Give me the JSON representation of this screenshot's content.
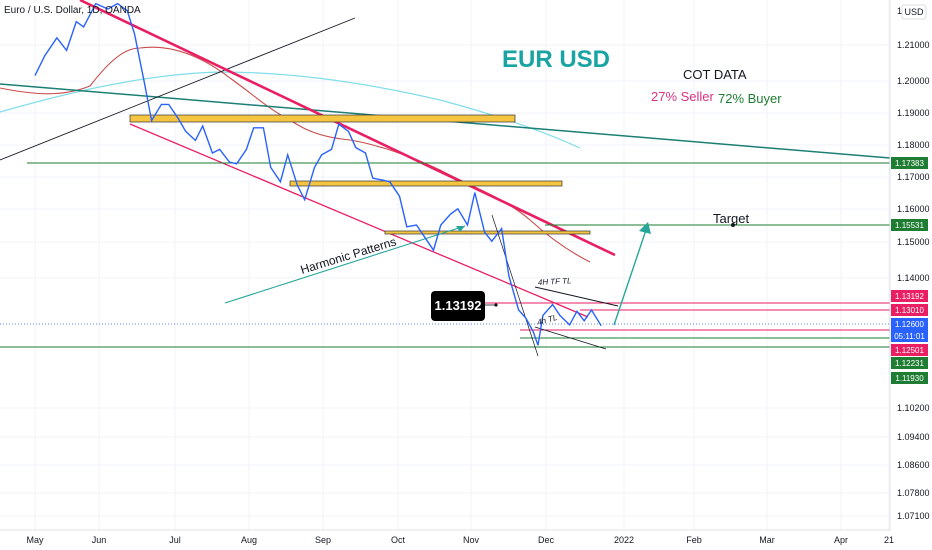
{
  "symbol_title": "Euro / U.S. Dollar, 1D, OANDA",
  "currency_label": "USD",
  "chart_data": {
    "type": "line",
    "title": "EUR USD",
    "x_labels": [
      "May",
      "Jun",
      "Jul",
      "Aug",
      "Sep",
      "Oct",
      "Nov",
      "Dec",
      "2022",
      "Feb",
      "Mar",
      "Apr",
      "21"
    ],
    "y_ticks": [
      "1.21000",
      "1.20000",
      "1.19000",
      "1.18000",
      "1.17000",
      "1.16000",
      "1.15000",
      "1.14000",
      "1.10200",
      "1.09400",
      "1.08600",
      "1.07800",
      "1.07100"
    ],
    "y_top_tick": "1.2",
    "ylim": [
      1.07,
      1.225
    ],
    "series": [
      {
        "values": [
          [
            "2021-05-01",
            1.2015
          ],
          [
            "2021-05-05",
            1.207
          ],
          [
            "2021-05-10",
            1.212
          ],
          [
            "2021-05-14",
            1.2085
          ],
          [
            "2021-05-18",
            1.2165
          ],
          [
            "2021-05-21",
            1.215
          ],
          [
            "2021-05-26",
            1.2215
          ],
          [
            "2021-05-31",
            1.22
          ],
          [
            "2021-06-04",
            1.2215
          ],
          [
            "2021-06-08",
            1.2195
          ],
          [
            "2021-06-11",
            1.213
          ],
          [
            "2021-06-15",
            1.1995
          ],
          [
            "2021-06-18",
            1.189
          ],
          [
            "2021-06-22",
            1.1935
          ],
          [
            "2021-06-25",
            1.1935
          ],
          [
            "2021-06-29",
            1.1895
          ],
          [
            "2021-07-02",
            1.186
          ],
          [
            "2021-07-06",
            1.1835
          ],
          [
            "2021-07-09",
            1.1875
          ],
          [
            "2021-07-13",
            1.18
          ],
          [
            "2021-07-16",
            1.181
          ],
          [
            "2021-07-20",
            1.1775
          ],
          [
            "2021-07-23",
            1.177
          ],
          [
            "2021-07-27",
            1.181
          ],
          [
            "2021-07-30",
            1.187
          ],
          [
            "2021-08-03",
            1.187
          ],
          [
            "2021-08-06",
            1.176
          ],
          [
            "2021-08-10",
            1.172
          ],
          [
            "2021-08-13",
            1.1795
          ],
          [
            "2021-08-17",
            1.171
          ],
          [
            "2021-08-20",
            1.167
          ],
          [
            "2021-08-24",
            1.176
          ],
          [
            "2021-08-27",
            1.1795
          ],
          [
            "2021-08-31",
            1.181
          ],
          [
            "2021-09-03",
            1.188
          ],
          [
            "2021-09-07",
            1.186
          ],
          [
            "2021-09-10",
            1.1815
          ],
          [
            "2021-09-14",
            1.18
          ],
          [
            "2021-09-17",
            1.173
          ],
          [
            "2021-09-21",
            1.1725
          ],
          [
            "2021-09-24",
            1.172
          ],
          [
            "2021-09-28",
            1.168
          ],
          [
            "2021-10-01",
            1.1595
          ],
          [
            "2021-10-05",
            1.16
          ],
          [
            "2021-10-08",
            1.157
          ],
          [
            "2021-10-12",
            1.153
          ],
          [
            "2021-10-15",
            1.16
          ],
          [
            "2021-10-19",
            1.163
          ],
          [
            "2021-10-22",
            1.1645
          ],
          [
            "2021-10-26",
            1.16
          ],
          [
            "2021-10-29",
            1.169
          ],
          [
            "2021-11-02",
            1.158
          ],
          [
            "2021-11-05",
            1.1555
          ],
          [
            "2021-11-09",
            1.159
          ],
          [
            "2021-11-12",
            1.1445
          ],
          [
            "2021-11-16",
            1.132
          ],
          [
            "2021-11-19",
            1.129
          ],
          [
            "2021-11-22",
            1.124
          ],
          [
            "2021-11-24",
            1.119
          ],
          [
            "2021-11-26",
            1.13
          ],
          [
            "2021-11-30",
            1.134
          ],
          [
            "2021-12-03",
            1.13
          ],
          [
            "2021-12-07",
            1.1265
          ],
          [
            "2021-12-10",
            1.1315
          ],
          [
            "2021-12-13",
            1.128
          ],
          [
            "2021-12-16",
            1.132
          ],
          [
            "2021-12-20",
            1.1262
          ]
        ]
      }
    ]
  },
  "price_badges": [
    {
      "value": "1.17383",
      "color": "#1e7d32"
    },
    {
      "value": "1.15531",
      "color": "#1e7d32"
    },
    {
      "value": "1.13192",
      "color": "#e91e63"
    },
    {
      "value": "1.13010",
      "color": "#e91e63"
    },
    {
      "value": "1.12600",
      "color": "#2962ff"
    },
    {
      "value": "05:11:01",
      "color": "#2962ff"
    },
    {
      "value": "1.12501",
      "color": "#e91e63"
    },
    {
      "value": "1.12231",
      "color": "#1e7d32"
    },
    {
      "value": "1.11930",
      "color": "#1e7d32"
    }
  ],
  "annotations": {
    "cot_title": "COT DATA",
    "cot_seller": "27% Seller",
    "cot_buyer": "72% Buyer",
    "target": "Target",
    "harmonic": "Harmonic Patterns",
    "tl_4h_tf": "4H TF TL",
    "tl_4h": "4h TL",
    "callout_price": "1.13192"
  },
  "colors": {
    "price_line": "#2962ff",
    "trend_pink": "#e91e63",
    "trend_green": "#1a7f74",
    "supply_zone": "#f5c542",
    "ma_red": "#c94a4a",
    "ma_teal": "#80deea"
  }
}
